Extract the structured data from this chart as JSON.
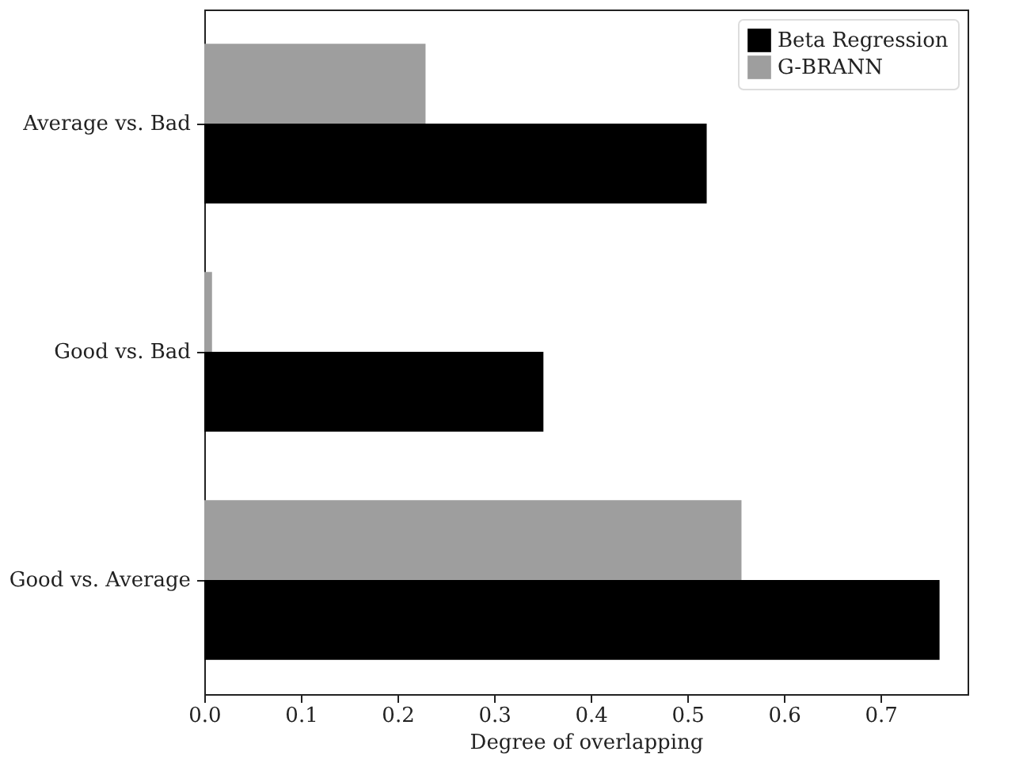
{
  "chart_data": {
    "type": "bar",
    "orientation": "horizontal",
    "xlabel": "Degree of overlapping",
    "categories": [
      "Average vs. Bad",
      "Good vs. Bad",
      "Good vs. Average"
    ],
    "series": [
      {
        "name": "Beta Regression",
        "color": "#000000",
        "values": [
          0.52,
          0.351,
          0.761
        ]
      },
      {
        "name": "G-BRANN",
        "color": "#9e9e9e",
        "values": [
          0.229,
          0.008,
          0.556
        ]
      }
    ],
    "xlim": [
      0,
      0.79
    ],
    "xticks": [
      {
        "value": 0,
        "label": "0.0"
      },
      0.1,
      0.2,
      0.3,
      0.4,
      0.5,
      0.6,
      0.7
    ],
    "grid": false,
    "legend": "top right"
  }
}
